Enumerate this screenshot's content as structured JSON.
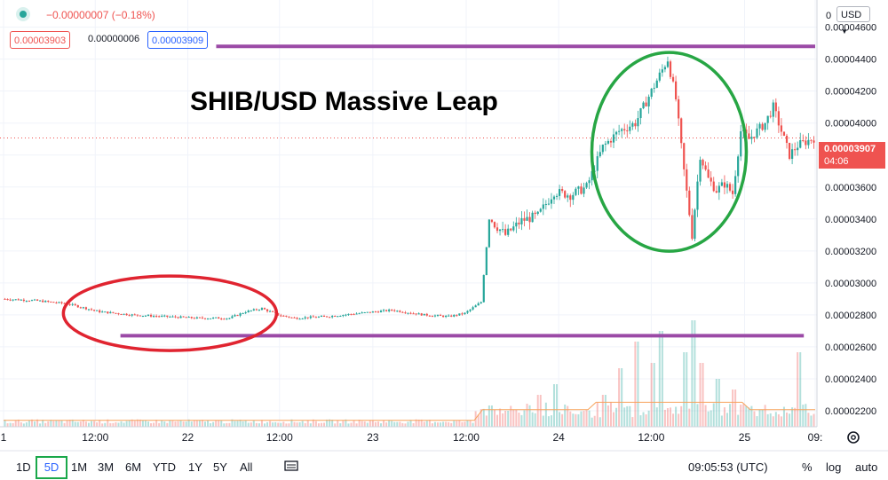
{
  "header": {
    "change_text": "−0.00000007 (−0.18%)",
    "bid": "0.00003903",
    "spread": "0.00000006",
    "ask": "0.00003909",
    "currency": "USD",
    "top_price_cut": "0"
  },
  "price_tag": {
    "price": "0.00003907",
    "countdown": "04:06"
  },
  "clock": "09:05:53 (UTC)",
  "timeframes": [
    "1D",
    "5D",
    "1M",
    "3M",
    "6M",
    "YTD",
    "1Y",
    "5Y",
    "All"
  ],
  "selected_timeframe": "5D",
  "bottom_right": {
    "percent": "%",
    "log": "log",
    "auto": "auto"
  },
  "colors": {
    "up": "#26a69a",
    "down": "#ef5350",
    "purple": "#9b4aa6",
    "green_circle": "#27a644",
    "red_circle": "#e02430",
    "select_box": "#1aa84a"
  },
  "chart_data": {
    "type": "candlestick",
    "title": "SHIB/USD Massive Leap",
    "y_ticks": [
      "0.00004600",
      "0.00004400",
      "0.00004200",
      "0.00004000",
      "0.00003800",
      "0.00003600",
      "0.00003400",
      "0.00003200",
      "0.00003000",
      "0.00002800",
      "0.00002600",
      "0.00002400",
      "0.00002200"
    ],
    "ylim": [
      2.1e-05,
      4.77e-05
    ],
    "x_ticks": [
      "1",
      "12:00",
      "22",
      "12:00",
      "23",
      "12:00",
      "24",
      "12:00",
      "25",
      "09:"
    ],
    "x_range": [
      0,
      100
    ],
    "x_tick_positions": [
      0,
      11.3,
      22.7,
      34,
      45.5,
      57,
      68.4,
      79.8,
      91.3,
      100
    ],
    "last_price": 3.907e-05,
    "price_path": [
      [
        0,
        2.9e-05
      ],
      [
        4,
        2.89e-05
      ],
      [
        8,
        2.87e-05
      ],
      [
        12,
        2.82e-05
      ],
      [
        16,
        2.8e-05
      ],
      [
        20,
        2.79e-05
      ],
      [
        24,
        2.78e-05
      ],
      [
        28,
        2.78e-05
      ],
      [
        30,
        2.82e-05
      ],
      [
        32,
        2.84e-05
      ],
      [
        34,
        2.8e-05
      ],
      [
        36,
        2.78e-05
      ],
      [
        40,
        2.79e-05
      ],
      [
        44,
        2.81e-05
      ],
      [
        48,
        2.83e-05
      ],
      [
        52,
        2.8e-05
      ],
      [
        55,
        2.79e-05
      ],
      [
        57,
        2.81e-05
      ],
      [
        59,
        2.88e-05
      ],
      [
        60,
        3.4e-05
      ],
      [
        62,
        3.3e-05
      ],
      [
        64,
        3.39e-05
      ],
      [
        66,
        3.42e-05
      ],
      [
        68,
        3.57e-05
      ],
      [
        70,
        3.55e-05
      ],
      [
        72,
        3.6e-05
      ],
      [
        74,
        3.85e-05
      ],
      [
        76,
        3.95e-05
      ],
      [
        78,
        4e-05
      ],
      [
        80,
        4.2e-05
      ],
      [
        82,
        4.4e-05
      ],
      [
        83,
        4.15e-05
      ],
      [
        84,
        3.7e-05
      ],
      [
        85,
        3.3e-05
      ],
      [
        86,
        3.8e-05
      ],
      [
        87,
        3.65e-05
      ],
      [
        88,
        3.58e-05
      ],
      [
        89,
        3.62e-05
      ],
      [
        90,
        3.56e-05
      ],
      [
        91,
        3.95e-05
      ],
      [
        92,
        3.9e-05
      ],
      [
        94,
        4e-05
      ],
      [
        95,
        4.1e-05
      ],
      [
        96,
        3.95e-05
      ],
      [
        97,
        3.8e-05
      ],
      [
        98,
        3.86e-05
      ],
      [
        100,
        3.907e-05
      ]
    ],
    "volume_spikes": [
      [
        60,
        0.2
      ],
      [
        62,
        0.15
      ],
      [
        66,
        0.3
      ],
      [
        68,
        0.4
      ],
      [
        74,
        0.3
      ],
      [
        76,
        0.55
      ],
      [
        78,
        0.8
      ],
      [
        80,
        0.6
      ],
      [
        81,
        0.9
      ],
      [
        84,
        0.7
      ],
      [
        85,
        1.0
      ],
      [
        86,
        0.6
      ],
      [
        88,
        0.45
      ],
      [
        90,
        0.35
      ],
      [
        98,
        0.7
      ]
    ],
    "annotations": {
      "support_level": 2.67e-05,
      "resistance_level": 4.48e-05,
      "red_ellipse_center": [
        20.5,
        2.81e-05
      ],
      "green_ellipse_center": [
        82,
        3.82e-05
      ]
    }
  }
}
